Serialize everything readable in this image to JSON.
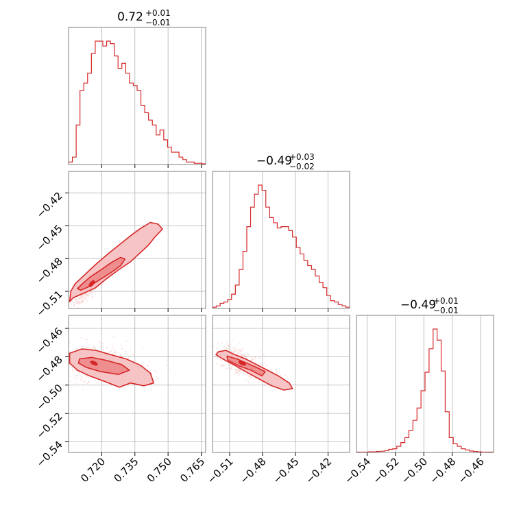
{
  "colors": {
    "accent": "#d62728",
    "fill_outer": "#f6c4c4",
    "fill_inner": "#ee8e8e",
    "points": "#f4b6b6"
  },
  "chart_data": {
    "type": "corner",
    "parameters": [
      {
        "range": [
          0.705,
          0.767
        ],
        "ticks": [
          0.72,
          0.735,
          0.75,
          0.765
        ],
        "tick_labels": [
          "0.720",
          "0.735",
          "0.750",
          "0.765"
        ],
        "title": {
          "median": "0.72",
          "plus": "+0.01",
          "minus": "−0.01"
        },
        "histogram": [
          1,
          3,
          16,
          30,
          33,
          37,
          45,
          50,
          50,
          48,
          50,
          49,
          44,
          39,
          41,
          37,
          33,
          32,
          30,
          24,
          21,
          18,
          16,
          12,
          14,
          10,
          7,
          5,
          5,
          3,
          2,
          1,
          1,
          0.5,
          0.5,
          0.3
        ]
      },
      {
        "range": [
          -0.5257,
          -0.4003
        ],
        "ticks": [
          -0.51,
          -0.48,
          -0.45,
          -0.42
        ],
        "tick_labels": [
          "−0.51",
          "−0.48",
          "−0.45",
          "−0.42"
        ],
        "title": {
          "median": "−0.49",
          "plus": "+0.03",
          "minus": "−0.02"
        },
        "histogram": [
          1,
          2,
          4,
          5,
          7,
          11,
          18,
          30,
          44,
          63,
          78,
          88,
          95,
          91,
          78,
          70,
          66,
          62,
          63,
          63,
          60,
          55,
          47,
          42,
          37,
          33,
          30,
          25,
          20,
          16,
          10,
          6,
          5,
          3,
          2,
          1
        ]
      },
      {
        "range": [
          -0.5475,
          -0.4508
        ],
        "ticks": [
          -0.54,
          -0.52,
          -0.5,
          -0.48,
          -0.46
        ],
        "tick_labels": [
          "−0.54",
          "−0.52",
          "−0.50",
          "−0.48",
          "−0.46"
        ],
        "title": {
          "median": "−0.49",
          "plus": "+0.01",
          "minus": "−0.01"
        },
        "histogram": [
          0.3,
          0.3,
          0.3,
          0.5,
          0.5,
          0.8,
          1,
          1.5,
          2.5,
          3,
          5,
          8,
          12,
          18,
          26,
          36,
          50,
          65,
          84,
          100,
          91,
          66,
          33,
          12,
          7,
          5,
          3,
          2,
          1.2,
          0.8,
          0.5,
          0.3,
          0.3,
          0.3
        ]
      }
    ],
    "joint": [
      {
        "x": 0,
        "y": 1,
        "center": [
          0.7155,
          -0.503
        ],
        "slope_dir": [
          0.00715,
          0.0175
        ],
        "width": 0.00085,
        "length_sigma": [
          1.8,
          0.6,
          2.4
        ],
        "contours": {
          "outer": [
            [
              0.7055,
              -0.5195
            ],
            [
              0.707,
              -0.516
            ],
            [
              0.712,
              -0.5115
            ],
            [
              0.717,
              -0.507
            ],
            [
              0.7215,
              -0.4995
            ],
            [
              0.7275,
              -0.4905
            ],
            [
              0.733,
              -0.483
            ],
            [
              0.737,
              -0.4755
            ],
            [
              0.741,
              -0.468
            ],
            [
              0.744,
              -0.4605
            ],
            [
              0.7475,
              -0.453
            ],
            [
              0.7455,
              -0.4485
            ],
            [
              0.742,
              -0.447
            ],
            [
              0.7375,
              -0.4525
            ],
            [
              0.7335,
              -0.4585
            ],
            [
              0.7285,
              -0.4665
            ],
            [
              0.723,
              -0.4755
            ],
            [
              0.7175,
              -0.485
            ],
            [
              0.7125,
              -0.4945
            ],
            [
              0.708,
              -0.503
            ],
            [
              0.706,
              -0.51
            ]
          ],
          "inner": [
            [
              0.7105,
              -0.509
            ],
            [
              0.7145,
              -0.5055
            ],
            [
              0.719,
              -0.4995
            ],
            [
              0.7245,
              -0.4925
            ],
            [
              0.7285,
              -0.4865
            ],
            [
              0.7305,
              -0.4805
            ],
            [
              0.7285,
              -0.479
            ],
            [
              0.7245,
              -0.4835
            ],
            [
              0.7195,
              -0.4905
            ],
            [
              0.715,
              -0.4965
            ],
            [
              0.711,
              -0.5035
            ],
            [
              0.709,
              -0.5075
            ]
          ]
        }
      },
      {
        "x": 0,
        "y": 2,
        "center": [
          0.7165,
          -0.4845
        ],
        "slope_dir": [
          0.016,
          -0.006
        ],
        "width": 0.003,
        "length_sigma": [
          1.4,
          0.5,
          2.0
        ],
        "contours": {
          "outer": [
            [
              0.7055,
              -0.4775
            ],
            [
              0.711,
              -0.4745
            ],
            [
              0.7175,
              -0.4755
            ],
            [
              0.724,
              -0.4785
            ],
            [
              0.731,
              -0.4815
            ],
            [
              0.7375,
              -0.486
            ],
            [
              0.742,
              -0.4915
            ],
            [
              0.7435,
              -0.4985
            ],
            [
              0.739,
              -0.5005
            ],
            [
              0.733,
              -0.4985
            ],
            [
              0.728,
              -0.5015
            ],
            [
              0.7215,
              -0.4975
            ],
            [
              0.7145,
              -0.4935
            ],
            [
              0.709,
              -0.4895
            ],
            [
              0.7055,
              -0.4845
            ]
          ],
          "inner": [
            [
              0.71,
              -0.4815
            ],
            [
              0.7155,
              -0.4805
            ],
            [
              0.722,
              -0.4825
            ],
            [
              0.729,
              -0.4855
            ],
            [
              0.7325,
              -0.4895
            ],
            [
              0.7275,
              -0.4925
            ],
            [
              0.7195,
              -0.4905
            ],
            [
              0.713,
              -0.4875
            ],
            [
              0.7095,
              -0.4845
            ]
          ]
        }
      },
      {
        "x": 1,
        "y": 2,
        "center": [
          -0.4985,
          -0.4845
        ],
        "slope_dir": [
          0.0205,
          -0.0072
        ],
        "width": 0.0018,
        "length_sigma": [
          1.5,
          0.5,
          2.2
        ],
        "contours": {
          "outer": [
            [
              -0.5205,
              -0.4765
            ],
            [
              -0.5135,
              -0.4755
            ],
            [
              -0.5055,
              -0.4785
            ],
            [
              -0.4955,
              -0.4815
            ],
            [
              -0.4855,
              -0.4855
            ],
            [
              -0.4755,
              -0.4895
            ],
            [
              -0.4655,
              -0.4935
            ],
            [
              -0.4555,
              -0.4985
            ],
            [
              -0.4525,
              -0.5025
            ],
            [
              -0.4605,
              -0.5035
            ],
            [
              -0.4715,
              -0.5005
            ],
            [
              -0.4835,
              -0.4955
            ],
            [
              -0.4955,
              -0.4905
            ],
            [
              -0.5065,
              -0.4855
            ],
            [
              -0.5165,
              -0.4815
            ],
            [
              -0.5225,
              -0.4785
            ]
          ],
          "inner": [
            [
              -0.5125,
              -0.4795
            ],
            [
              -0.5035,
              -0.4815
            ],
            [
              -0.4945,
              -0.4845
            ],
            [
              -0.4855,
              -0.4875
            ],
            [
              -0.4775,
              -0.4905
            ],
            [
              -0.4805,
              -0.4935
            ],
            [
              -0.4905,
              -0.4895
            ],
            [
              -0.5015,
              -0.4865
            ],
            [
              -0.5115,
              -0.4825
            ]
          ]
        }
      }
    ]
  }
}
